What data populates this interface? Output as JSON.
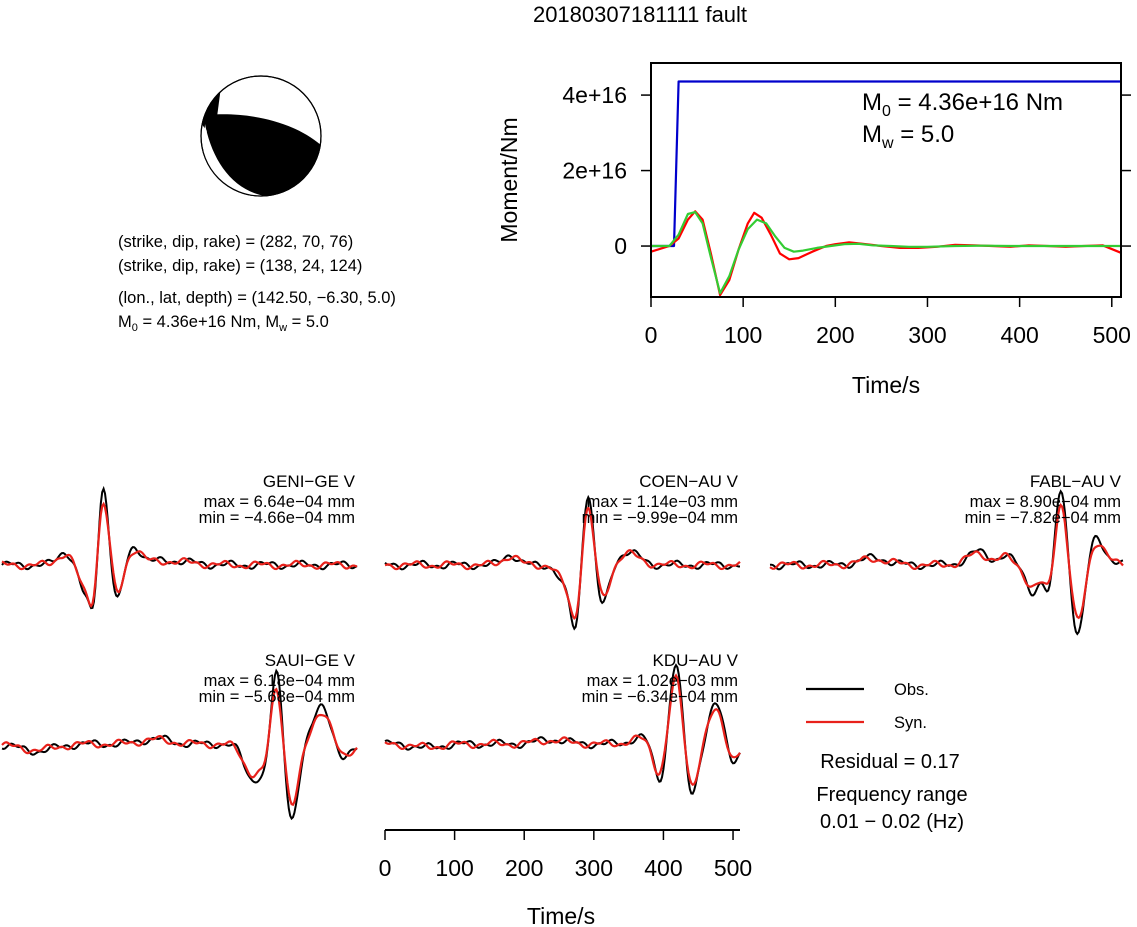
{
  "title": "20180307181111 fault",
  "mechanism": {
    "line1": "(strike, dip, rake) = (282, 70, 76)",
    "line2": "(strike, dip, rake) = (138, 24, 124)",
    "line3": "(lon., lat, depth) = (142.50, −6.30, 5.0)",
    "m0_prefix": "M",
    "m0_sub": "0",
    "m0_mid": " = 4.36e+16 Nm, M",
    "mw_sub": "w",
    "mw_suffix": " = 5.0"
  },
  "chart_data": [
    {
      "type": "line",
      "name": "moment-rate",
      "xlabel": "Time/s",
      "ylabel": "Moment/Nm",
      "xlim": [
        0,
        510
      ],
      "ylim": [
        -1.35e+16,
        4.85e+16
      ],
      "xticks": [
        0,
        100,
        200,
        300,
        400,
        500
      ],
      "yticks": [
        0,
        2e+16,
        4e+16
      ],
      "ytick_labels": [
        "0",
        "2e+16",
        "4e+16"
      ],
      "annotation": {
        "m0_prefix": "M",
        "m0_sub": "0",
        "m0_value": " = 4.36e+16 Nm",
        "mw_prefix": "M",
        "mw_sub": "w",
        "mw_value": " = 5.0"
      },
      "series": [
        {
          "color": "#0000cc",
          "x": [
            0,
            25,
            30,
            510
          ],
          "y": [
            0,
            0,
            4.36e+16,
            4.36e+16
          ]
        },
        {
          "color": "#ff0000",
          "x": [
            0,
            20,
            30,
            40,
            48,
            56,
            65,
            75,
            85,
            95,
            105,
            112,
            120,
            130,
            140,
            150,
            160,
            175,
            190,
            200,
            215,
            230,
            250,
            270,
            290,
            310,
            330,
            350,
            370,
            390,
            410,
            430,
            450,
            470,
            490,
            510
          ],
          "y": [
            -1500000000000000.0,
            0,
            2000000000000000.0,
            7000000000000000.0,
            9200000000000000.0,
            7000000000000000.0,
            -2000000000000000.0,
            -1.3e+16,
            -9000000000000000.0,
            -1000000000000000.0,
            6000000000000000.0,
            8800000000000000.0,
            7500000000000000.0,
            3000000000000000.0,
            -2000000000000000.0,
            -3500000000000000.0,
            -3200000000000000.0,
            -1500000000000000.0,
            0,
            500000000000000.0,
            1000000000000000.0,
            600000000000000.0,
            0,
            -500000000000000.0,
            -500000000000000.0,
            -200000000000000.0,
            300000000000000.0,
            200000000000000.0,
            0,
            -200000000000000.0,
            200000000000000.0,
            0,
            -200000000000000.0,
            0,
            200000000000000.0,
            -1800000000000000.0
          ]
        },
        {
          "color": "#33cc33",
          "x": [
            0,
            20,
            30,
            40,
            48,
            56,
            65,
            75,
            85,
            95,
            105,
            115,
            125,
            135,
            145,
            155,
            165,
            180,
            195,
            210,
            225,
            240,
            260,
            280,
            300,
            330,
            360,
            390,
            420,
            450,
            480,
            510
          ],
          "y": [
            0,
            0,
            3000000000000000.0,
            8500000000000000.0,
            9000000000000000.0,
            6000000000000000.0,
            -3000000000000000.0,
            -1.25e+16,
            -8000000000000000.0,
            -1000000000000000.0,
            4500000000000000.0,
            7000000000000000.0,
            6000000000000000.0,
            2500000000000000.0,
            -500000000000000.0,
            -1500000000000000.0,
            -1200000000000000.0,
            -500000000000000.0,
            0,
            500000000000000.0,
            600000000000000.0,
            200000000000000.0,
            0,
            -200000000000000.0,
            -200000000000000.0,
            0,
            100000000000000.0,
            0,
            0,
            0,
            0,
            0
          ]
        }
      ]
    },
    {
      "type": "line",
      "name": "waveforms",
      "xlabel": "Time/s",
      "xlim": [
        0,
        510
      ],
      "xticks": [
        0,
        100,
        200,
        300,
        400,
        500
      ],
      "traces": [
        {
          "station": "GENI−GE V",
          "max": "max = 6.64e−04 mm",
          "min": "min = −4.66e−04 mm"
        },
        {
          "station": "COEN−AU V",
          "max": "max = 1.14e−03 mm",
          "min": "min = −9.99e−04 mm"
        },
        {
          "station": "FABL−AU V",
          "max": "max = 8.90e−04 mm",
          "min": "min = −7.82e−04 mm"
        },
        {
          "station": "SAUI−GE V",
          "max": "max = 6.18e−04 mm",
          "min": "min = −5.68e−04 mm"
        },
        {
          "station": "KDU−AU V",
          "max": "max = 1.02e−03 mm",
          "min": "min = −6.34e−04 mm"
        }
      ],
      "legend": [
        {
          "label": "Obs.",
          "color": "#000000"
        },
        {
          "label": "Syn.",
          "color": "#e8211b"
        }
      ],
      "residual": "Residual = 0.17",
      "freq_title": "Frequency range",
      "freq_value": "0.01 − 0.02 (Hz)"
    }
  ]
}
